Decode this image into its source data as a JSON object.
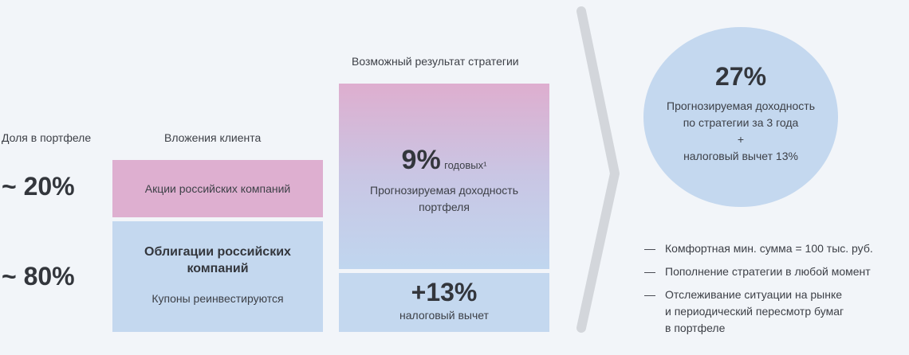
{
  "left": {
    "share_header": "Доля в портфеле",
    "share_stocks": "~ 20%",
    "share_bonds": "~ 80%"
  },
  "client": {
    "header": "Вложения клиента",
    "stocks": "Акции российских компаний",
    "bonds_title_line1": "Облигации российских",
    "bonds_title_line2": "компаний",
    "bonds_subtitle": "Купоны реинвестируются"
  },
  "strategy": {
    "header": "Возможный результат стратегии",
    "yield_value": "9%",
    "yield_suffix": "годовых¹",
    "yield_desc_line1": "Прогнозируемая доходность",
    "yield_desc_line2": "портфеля",
    "tax_value": "+13%",
    "tax_desc": "налоговый вычет"
  },
  "result": {
    "value": "27%",
    "line1": "Прогнозируемая доходность",
    "line2": "по стратегии за 3 года",
    "line3": "+",
    "line4": "налоговый вычет 13%"
  },
  "bullets": {
    "dash": "—",
    "item1": "Комфортная мин. сумма = 100 тыс. руб.",
    "item2": "Пополнение стратегии в любой момент",
    "item3_line1": "Отслеживание ситуации на рынке",
    "item3_line2": "и периодический пересмотр бумаг",
    "item3_line3": "в портфеле"
  },
  "colors": {
    "pink": "#deafd0",
    "blue": "#c4d8ef",
    "background": "#f2f5f9",
    "chevron": "#d3d6db"
  }
}
